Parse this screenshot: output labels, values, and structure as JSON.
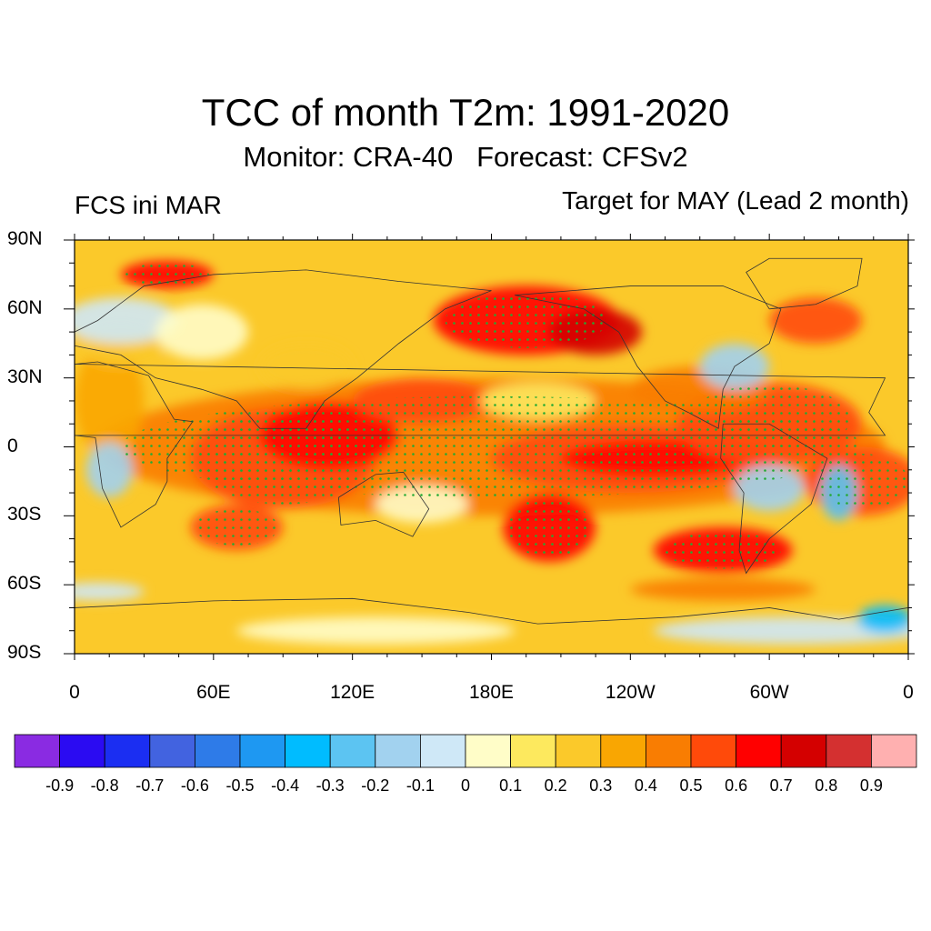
{
  "title": "TCC of month T2m: 1991-2020",
  "subtitle": "Monitor: CRA-40   Forecast: CFSv2",
  "left_label": "FCS ini MAR",
  "right_label": "Target for MAY (Lead 2 month)",
  "lat_labels": [
    "90N",
    "60N",
    "30N",
    "0",
    "30S",
    "60S",
    "90S"
  ],
  "lon_labels": [
    "0",
    "60E",
    "120E",
    "180E",
    "120W",
    "60W",
    "0"
  ],
  "colorbar": {
    "colors": [
      "#8a2be2",
      "#2b0bf2",
      "#1b2ef2",
      "#4263e0",
      "#2e7be8",
      "#1e98f2",
      "#00bcff",
      "#5cc4f2",
      "#a2d2ef",
      "#cfe8f7",
      "#fffdc8",
      "#fde95e",
      "#fbc92a",
      "#f9a602",
      "#f97d02",
      "#ff4a0a",
      "#ff0000",
      "#d40000",
      "#d43030",
      "#ffb0b0"
    ],
    "labels": [
      "-0.9",
      "-0.8",
      "-0.7",
      "-0.6",
      "-0.5",
      "-0.4",
      "-0.3",
      "-0.2",
      "-0.1",
      "0",
      "0.1",
      "0.2",
      "0.3",
      "0.4",
      "0.5",
      "0.6",
      "0.7",
      "0.8",
      "0.9"
    ]
  },
  "significance_dot_color": "#22aa33"
}
